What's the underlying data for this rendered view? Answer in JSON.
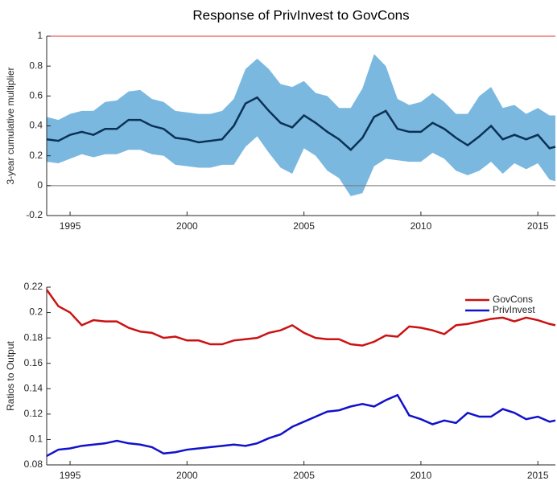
{
  "chart_data": [
    {
      "type": "line",
      "title": "Response of PrivInvest to GovCons",
      "ylabel": "3-year cumulative multiplier",
      "x": [
        1994,
        1994.5,
        1995,
        1995.5,
        1996,
        1996.5,
        1997,
        1997.5,
        1998,
        1998.5,
        1999,
        1999.5,
        2000,
        2000.5,
        2001,
        2001.5,
        2002,
        2002.5,
        2003,
        2003.5,
        2004,
        2004.5,
        2005,
        2005.5,
        2006,
        2006.5,
        2007,
        2007.5,
        2008,
        2008.5,
        2009,
        2009.5,
        2010,
        2010.5,
        2011,
        2011.5,
        2012,
        2012.5,
        2013,
        2013.5,
        2014,
        2014.5,
        2015,
        2015.5,
        2015.75
      ],
      "values": [
        0.31,
        0.3,
        0.34,
        0.36,
        0.34,
        0.38,
        0.38,
        0.44,
        0.44,
        0.4,
        0.38,
        0.32,
        0.31,
        0.29,
        0.3,
        0.31,
        0.4,
        0.55,
        0.59,
        0.5,
        0.42,
        0.39,
        0.47,
        0.42,
        0.36,
        0.31,
        0.24,
        0.32,
        0.46,
        0.5,
        0.38,
        0.36,
        0.36,
        0.42,
        0.38,
        0.32,
        0.27,
        0.33,
        0.4,
        0.31,
        0.34,
        0.31,
        0.34,
        0.25,
        0.26
      ],
      "upper": [
        0.46,
        0.44,
        0.48,
        0.5,
        0.5,
        0.56,
        0.57,
        0.63,
        0.64,
        0.58,
        0.56,
        0.5,
        0.49,
        0.48,
        0.48,
        0.5,
        0.58,
        0.78,
        0.85,
        0.78,
        0.68,
        0.66,
        0.7,
        0.62,
        0.6,
        0.52,
        0.52,
        0.65,
        0.88,
        0.8,
        0.58,
        0.54,
        0.56,
        0.62,
        0.56,
        0.48,
        0.48,
        0.6,
        0.66,
        0.52,
        0.54,
        0.48,
        0.52,
        0.47,
        0.47
      ],
      "lower": [
        0.16,
        0.15,
        0.18,
        0.21,
        0.19,
        0.21,
        0.21,
        0.24,
        0.24,
        0.21,
        0.2,
        0.14,
        0.13,
        0.12,
        0.12,
        0.14,
        0.14,
        0.26,
        0.33,
        0.22,
        0.12,
        0.08,
        0.25,
        0.2,
        0.1,
        0.05,
        -0.07,
        -0.05,
        0.13,
        0.18,
        0.17,
        0.16,
        0.16,
        0.22,
        0.18,
        0.1,
        0.07,
        0.1,
        0.16,
        0.08,
        0.15,
        0.11,
        0.15,
        0.04,
        0.03
      ],
      "color": "#0b3154",
      "band_color": "#7ab8e0",
      "hlines": [
        {
          "value": 1,
          "color": "#e8342c"
        },
        {
          "value": 0,
          "color": "#777777"
        }
      ],
      "xlim": [
        1994,
        2015.75
      ],
      "xticks": [
        1995,
        2000,
        2005,
        2010,
        2015
      ],
      "ylim": [
        -0.2,
        1
      ],
      "yticks": [
        -0.2,
        0,
        0.2,
        0.4,
        0.6,
        0.8,
        1
      ]
    },
    {
      "type": "line",
      "ylabel": "Ratios to Output",
      "legend": "upper right",
      "x": [
        1994,
        1994.5,
        1995,
        1995.5,
        1996,
        1996.5,
        1997,
        1997.5,
        1998,
        1998.5,
        1999,
        1999.5,
        2000,
        2000.5,
        2001,
        2001.5,
        2002,
        2002.5,
        2003,
        2003.5,
        2004,
        2004.5,
        2005,
        2005.5,
        2006,
        2006.5,
        2007,
        2007.5,
        2008,
        2008.5,
        2009,
        2009.5,
        2010,
        2010.5,
        2011,
        2011.5,
        2012,
        2012.5,
        2013,
        2013.5,
        2014,
        2014.5,
        2015,
        2015.5,
        2015.75
      ],
      "series": [
        {
          "name": "GovCons",
          "color": "#cc1111",
          "values": [
            0.218,
            0.205,
            0.2,
            0.19,
            0.194,
            0.193,
            0.193,
            0.188,
            0.185,
            0.184,
            0.18,
            0.181,
            0.178,
            0.178,
            0.175,
            0.175,
            0.178,
            0.179,
            0.18,
            0.184,
            0.186,
            0.19,
            0.184,
            0.18,
            0.179,
            0.179,
            0.175,
            0.174,
            0.177,
            0.182,
            0.181,
            0.189,
            0.188,
            0.186,
            0.183,
            0.19,
            0.191,
            0.193,
            0.195,
            0.196,
            0.193,
            0.196,
            0.194,
            0.191,
            0.19
          ]
        },
        {
          "name": "PrivInvest",
          "color": "#1111cc",
          "values": [
            0.087,
            0.092,
            0.093,
            0.095,
            0.096,
            0.097,
            0.099,
            0.097,
            0.096,
            0.094,
            0.089,
            0.09,
            0.092,
            0.093,
            0.094,
            0.095,
            0.096,
            0.095,
            0.097,
            0.101,
            0.104,
            0.11,
            0.114,
            0.118,
            0.122,
            0.123,
            0.126,
            0.128,
            0.126,
            0.131,
            0.135,
            0.119,
            0.116,
            0.112,
            0.115,
            0.113,
            0.121,
            0.118,
            0.118,
            0.124,
            0.121,
            0.116,
            0.118,
            0.114,
            0.115
          ]
        }
      ],
      "xlim": [
        1994,
        2015.75
      ],
      "xticks": [
        1995,
        2000,
        2005,
        2010,
        2015
      ],
      "ylim": [
        0.08,
        0.22
      ],
      "yticks": [
        0.08,
        0.1,
        0.12,
        0.14,
        0.16,
        0.18,
        0.2,
        0.22
      ]
    }
  ]
}
